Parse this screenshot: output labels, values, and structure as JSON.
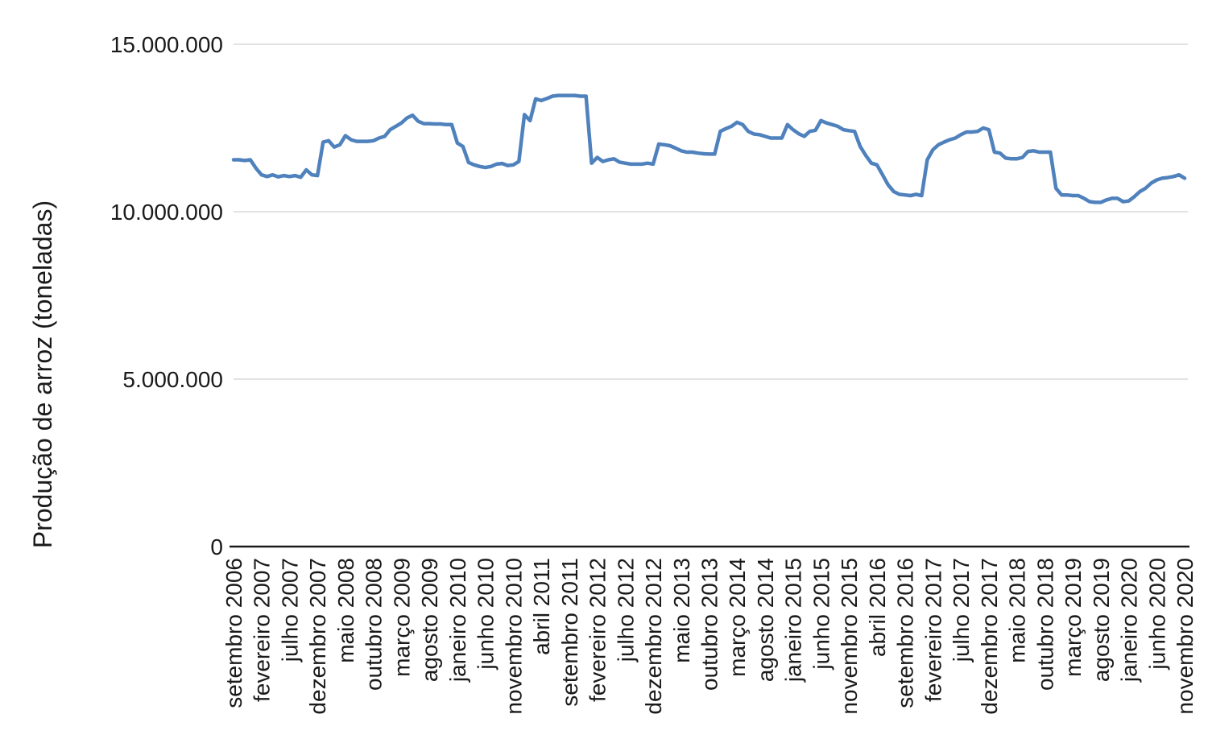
{
  "chart_data": {
    "type": "line",
    "title": "",
    "xlabel": "",
    "ylabel": "Produção de arroz (toneladas)",
    "ylim": [
      0,
      15000000
    ],
    "grid": "horizontal-only",
    "legend": "none",
    "colors": {
      "line": "#4f81bd",
      "gridline": "#d9d9d9",
      "axis": "#1a1a1a",
      "text": "#1a1a1a",
      "background": "#ffffff"
    },
    "y_ticks": [
      {
        "value": 0,
        "label": "0"
      },
      {
        "value": 5000000,
        "label": "5.000.000"
      },
      {
        "value": 10000000,
        "label": "10.000.000"
      },
      {
        "value": 15000000,
        "label": "15.000.000"
      }
    ],
    "x_tick_interval": 5,
    "x_tick_labels": [
      "setembro 2006",
      "fevereiro 2007",
      "julho 2007",
      "dezembro 2007",
      "maio 2008",
      "outubro 2008",
      "março 2009",
      "agosto 2009",
      "janeiro 2010",
      "junho 2010",
      "novembro 2010",
      "abril 2011",
      "setembro 2011",
      "fevereiro 2012",
      "julho 2012",
      "dezembro 2012",
      "maio 2013",
      "outubro 2013",
      "março 2014",
      "agosto 2014",
      "janeiro 2015",
      "junho 2015",
      "novembro 2015",
      "abril 2016",
      "setembro 2016",
      "fevereiro 2017",
      "julho 2017",
      "dezembro 2017",
      "maio 2018",
      "outubro 2018",
      "março 2019",
      "agosto 2019",
      "janeiro 2020",
      "junho 2020",
      "novembro 2020"
    ],
    "series": [
      {
        "name": "Produção de arroz (toneladas)",
        "color": "#4f81bd",
        "period": "mensal, setembro 2006 a novembro 2020",
        "values": [
          11550000,
          11550000,
          11530000,
          11550000,
          11300000,
          11100000,
          11050000,
          11100000,
          11040000,
          11080000,
          11050000,
          11080000,
          11030000,
          11250000,
          11100000,
          11080000,
          12080000,
          12120000,
          11930000,
          12000000,
          12270000,
          12150000,
          12100000,
          12100000,
          12100000,
          12120000,
          12200000,
          12250000,
          12450000,
          12550000,
          12650000,
          12800000,
          12880000,
          12700000,
          12630000,
          12630000,
          12620000,
          12620000,
          12600000,
          12600000,
          12050000,
          11950000,
          11470000,
          11400000,
          11350000,
          11320000,
          11350000,
          11420000,
          11440000,
          11380000,
          11400000,
          11500000,
          12900000,
          12720000,
          13370000,
          13320000,
          13380000,
          13450000,
          13470000,
          13470000,
          13470000,
          13470000,
          13450000,
          13450000,
          11450000,
          11620000,
          11500000,
          11550000,
          11580000,
          11480000,
          11450000,
          11420000,
          11420000,
          11420000,
          11450000,
          11420000,
          12020000,
          12000000,
          11970000,
          11900000,
          11820000,
          11780000,
          11780000,
          11750000,
          11730000,
          11720000,
          11720000,
          12400000,
          12480000,
          12550000,
          12670000,
          12600000,
          12400000,
          12320000,
          12300000,
          12250000,
          12200000,
          12200000,
          12200000,
          12600000,
          12450000,
          12330000,
          12250000,
          12400000,
          12430000,
          12720000,
          12650000,
          12600000,
          12550000,
          12450000,
          12420000,
          12400000,
          11950000,
          11680000,
          11450000,
          11400000,
          11100000,
          10800000,
          10600000,
          10520000,
          10500000,
          10480000,
          10520000,
          10480000,
          11550000,
          11850000,
          12000000,
          12080000,
          12150000,
          12200000,
          12300000,
          12380000,
          12380000,
          12400000,
          12500000,
          12450000,
          11780000,
          11750000,
          11600000,
          11580000,
          11580000,
          11620000,
          11800000,
          11820000,
          11780000,
          11780000,
          11780000,
          10700000,
          10500000,
          10500000,
          10480000,
          10480000,
          10400000,
          10300000,
          10280000,
          10280000,
          10350000,
          10400000,
          10400000,
          10300000,
          10320000,
          10450000,
          10600000,
          10700000,
          10850000,
          10950000,
          11000000,
          11020000,
          11050000,
          11100000,
          11000000
        ]
      }
    ]
  }
}
